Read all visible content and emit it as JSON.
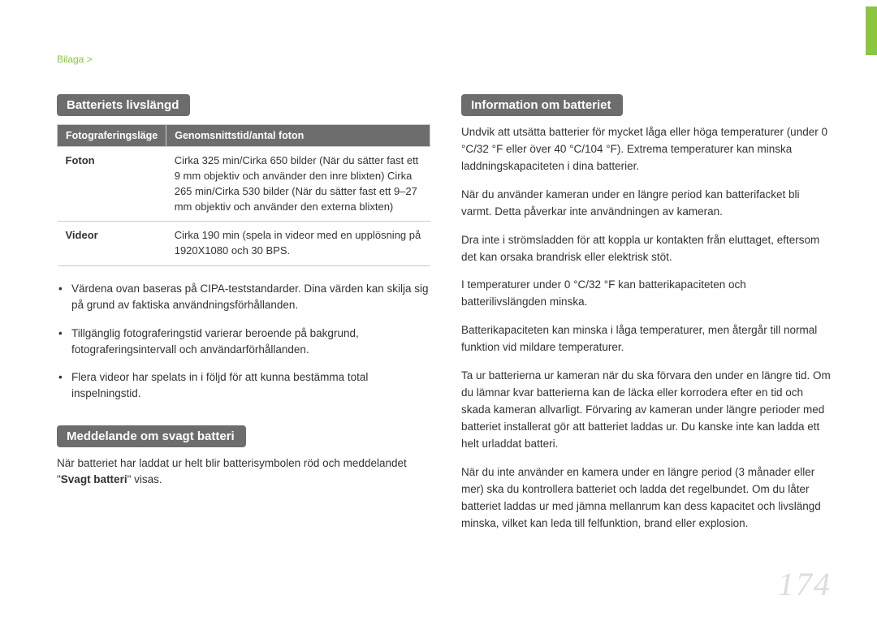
{
  "breadcrumb": {
    "label": "Bilaga",
    "sep": ">"
  },
  "pageNumber": "174",
  "left": {
    "heading1": "Batteriets livslängd",
    "table": {
      "col1": "Fotograferingsläge",
      "col2": "Genomsnittstid/antal foton",
      "rows": [
        {
          "label": "Foton",
          "value": "Cirka 325 min/Cirka 650 bilder (När du sätter fast ett 9 mm objektiv och använder den inre blixten) Cirka 265 min/Cirka 530 bilder (När du sätter fast ett 9–27 mm objektiv och använder den externa blixten)"
        },
        {
          "label": "Videor",
          "value": "Cirka 190 min (spela in videor med en upplösning på 1920X1080 och 30 BPS."
        }
      ]
    },
    "bullets": [
      "Värdena ovan baseras på CIPA-teststandarder. Dina värden kan skilja sig på grund av faktiska användningsförhållanden.",
      "Tillgänglig fotograferingstid varierar beroende på bakgrund, fotograferingsintervall och användarförhållanden.",
      "Flera videor har spelats in i följd för att kunna bestämma total inspelningstid."
    ],
    "heading2": "Meddelande om svagt batteri",
    "lowBatteryPrefix": "När batteriet har laddat ur helt blir batterisymbolen röd och meddelandet \"",
    "lowBatteryBold": "Svagt batteri",
    "lowBatterySuffix": "\" visas."
  },
  "right": {
    "heading": "Information om batteriet",
    "paragraphs": [
      "Undvik att utsätta batterier för mycket låga eller höga temperaturer (under 0 °C/32 °F eller över 40 °C/104 °F). Extrema temperaturer kan minska laddningskapaciteten i dina batterier.",
      "När du använder kameran under en längre period kan batterifacket bli varmt. Detta påverkar inte användningen av kameran.",
      "Dra inte i strömsladden för att koppla ur kontakten från eluttaget, eftersom det kan orsaka brandrisk eller elektrisk stöt.",
      "I temperaturer under 0 °C/32 °F kan batterikapaciteten och batterilivslängden minska.",
      "Batterikapaciteten kan minska i låga temperaturer, men återgår till normal funktion vid mildare temperaturer.",
      "Ta ur batterierna ur kameran när du ska förvara den under en längre tid. Om du lämnar kvar batterierna kan de läcka eller korrodera efter en tid och skada kameran allvarligt. Förvaring av kameran under längre perioder med batteriet installerat gör att batteriet laddas ur. Du kanske inte kan ladda ett helt urladdat batteri.",
      "När du inte använder en kamera under en längre period (3 månader eller mer) ska du kontrollera batteriet och ladda det regelbundet. Om du låter batteriet laddas ur med jämna mellanrum kan dess kapacitet och livslängd minska, vilket kan leda till felfunktion, brand eller explosion."
    ]
  }
}
